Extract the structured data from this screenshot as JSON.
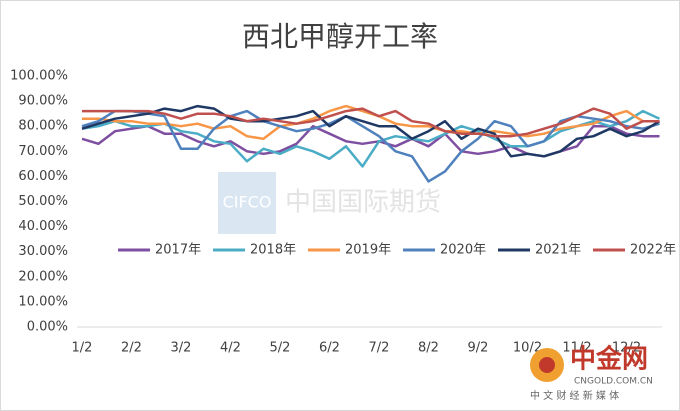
{
  "chart_data": {
    "type": "line",
    "title": "西北甲醇开工率",
    "categories": [
      "1/2",
      null,
      null,
      "2/2",
      null,
      null,
      "3/2",
      null,
      null,
      "4/2",
      null,
      null,
      "5/2",
      null,
      null,
      "6/2",
      null,
      null,
      "7/2",
      null,
      null,
      "8/2",
      null,
      null,
      "9/2",
      null,
      null,
      "10/2",
      null,
      null,
      "11/2",
      null,
      null,
      "12/2",
      null,
      null
    ],
    "series": [
      {
        "name": "2017年",
        "color": "#7e4fa0",
        "values": [
          75,
          73,
          78,
          79,
          80,
          77,
          77,
          74,
          72,
          74,
          70,
          69,
          70,
          73,
          80,
          77,
          74,
          73,
          74,
          72,
          75,
          72,
          77,
          70,
          69,
          70,
          72,
          69,
          68,
          70,
          72,
          80,
          80,
          77,
          76,
          76
        ]
      },
      {
        "name": "2018年",
        "color": "#4bacc6",
        "values": [
          79,
          80,
          82,
          80,
          80,
          81,
          78,
          77,
          74,
          73,
          66,
          71,
          69,
          72,
          70,
          67,
          72,
          64,
          74,
          76,
          75,
          74,
          77,
          80,
          78,
          75,
          72,
          72,
          74,
          78,
          80,
          82,
          80,
          82,
          86,
          83
        ]
      },
      {
        "name": "2019年",
        "color": "#f79646",
        "values": [
          83,
          83,
          82,
          82,
          81,
          81,
          80,
          81,
          79,
          80,
          76,
          75,
          80,
          81,
          83,
          86,
          88,
          86,
          84,
          81,
          80,
          80,
          78,
          78,
          77,
          78,
          77,
          76,
          77,
          79,
          80,
          81,
          84,
          86,
          82,
          82
        ]
      },
      {
        "name": "2020年",
        "color": "#4f81bd",
        "values": [
          80,
          82,
          86,
          86,
          85,
          84,
          71,
          71,
          79,
          84,
          86,
          82,
          80,
          78,
          79,
          81,
          84,
          80,
          76,
          70,
          68,
          58,
          62,
          70,
          75,
          82,
          80,
          72,
          74,
          82,
          84,
          83,
          82,
          80,
          79,
          81
        ]
      },
      {
        "name": "2021年",
        "color": "#1f3864",
        "values": [
          79,
          81,
          83,
          84,
          85,
          87,
          86,
          88,
          87,
          83,
          82,
          82,
          83,
          84,
          86,
          80,
          84,
          82,
          80,
          80,
          75,
          78,
          82,
          75,
          79,
          77,
          68,
          69,
          68,
          70,
          75,
          76,
          79,
          76,
          78,
          82
        ]
      },
      {
        "name": "2022年",
        "color": "#c0504d",
        "values": [
          86,
          86,
          86,
          86,
          86,
          85,
          83,
          85,
          85,
          84,
          82,
          83,
          82,
          81,
          82,
          84,
          86,
          87,
          84,
          86,
          82,
          81,
          78,
          77,
          77,
          76,
          76,
          77,
          79,
          81,
          84,
          87,
          85,
          79,
          82,
          82
        ]
      }
    ],
    "ylim": [
      0,
      100
    ],
    "yticks": [
      {
        "value": 0,
        "label": "0.00%"
      },
      {
        "value": 10,
        "label": "10.00%"
      },
      {
        "value": 20,
        "label": "20.00%"
      },
      {
        "value": 30,
        "label": "30.00%"
      },
      {
        "value": 40,
        "label": "40.00%"
      },
      {
        "value": 50,
        "label": "50.00%"
      },
      {
        "value": 60,
        "label": "60.00%"
      },
      {
        "value": 70,
        "label": "70.00%"
      },
      {
        "value": 80,
        "label": "80.00%"
      },
      {
        "value": 90,
        "label": "90.00%"
      },
      {
        "value": 100,
        "label": "100.00%"
      }
    ],
    "watermarks": [
      "CIFCO",
      "中国国际期货",
      "中金网",
      "CNGOLD.COM.CN",
      "中 文 财 经 新 媒 体"
    ]
  }
}
